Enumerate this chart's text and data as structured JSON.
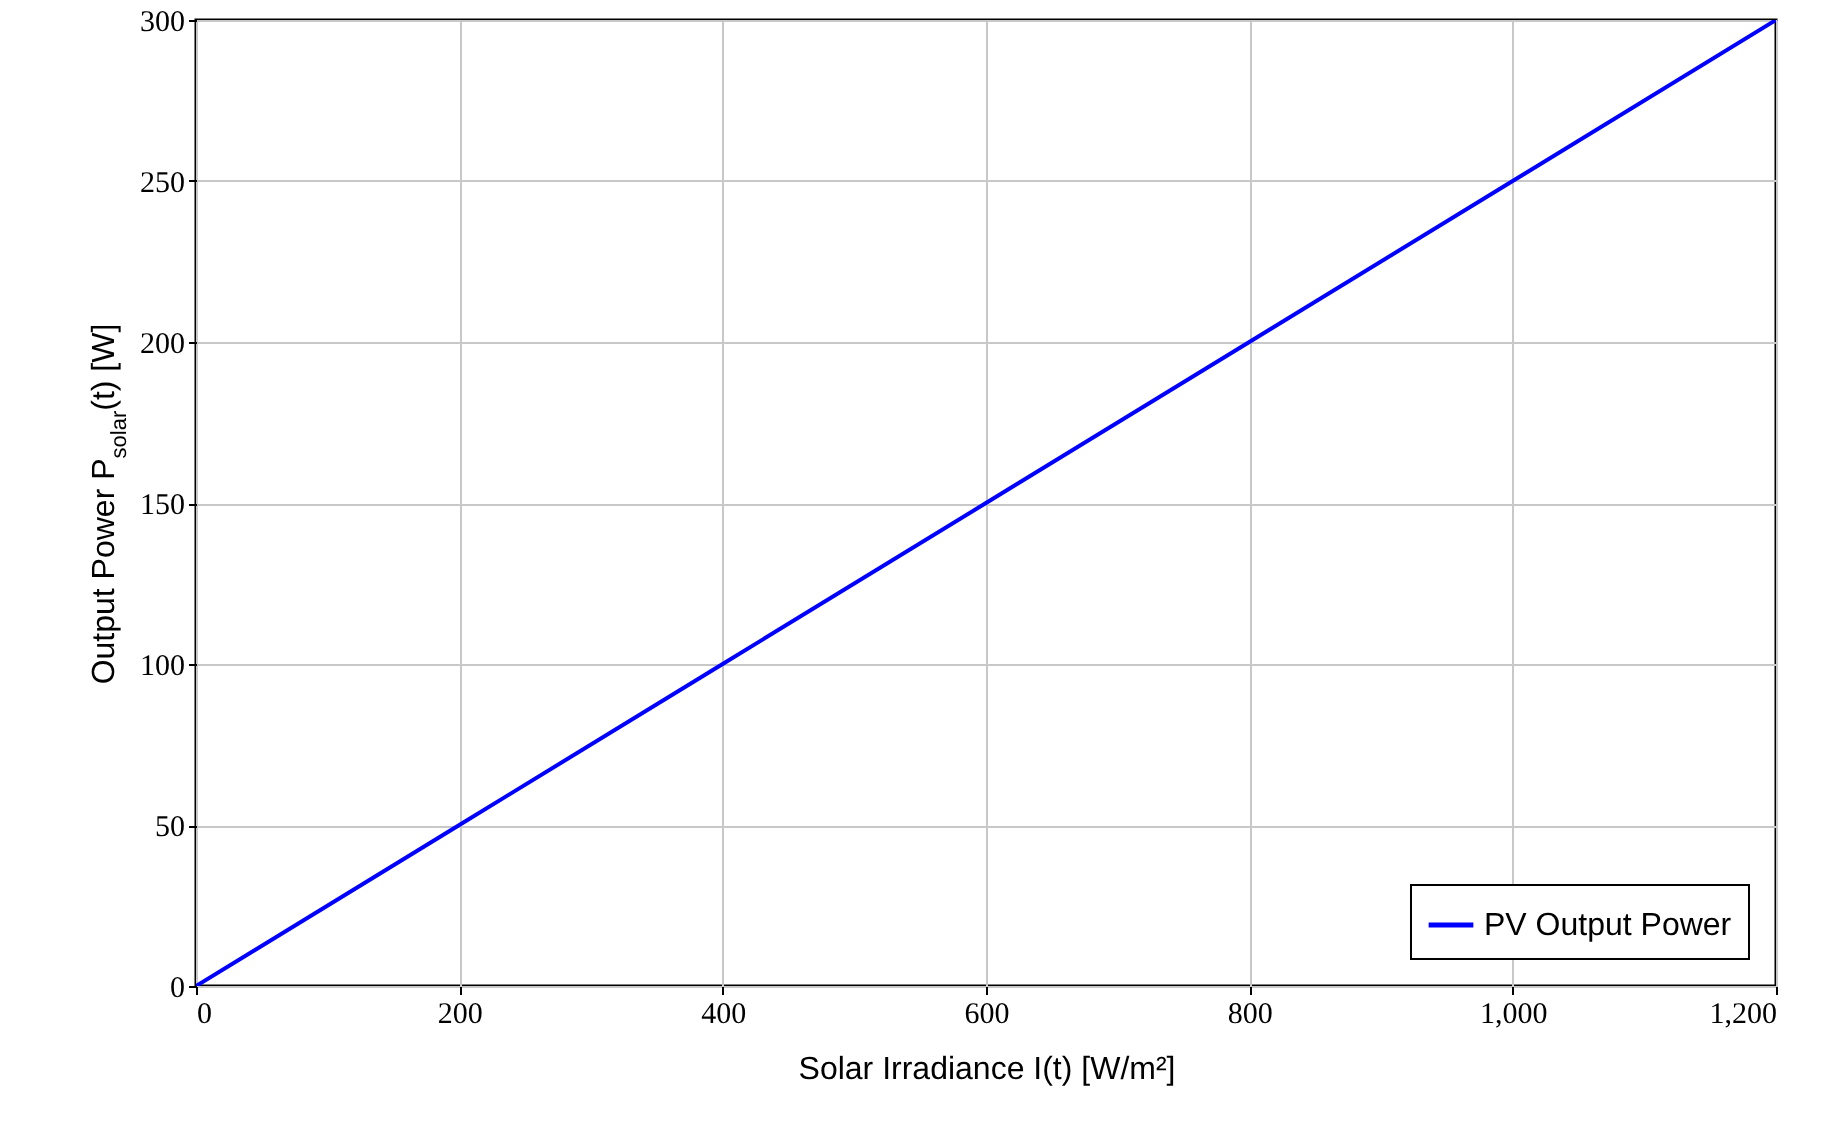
{
  "chart_data": {
    "type": "line",
    "xlabel": "Solar Irradiance I(t) [W/m²]",
    "ylabel": "Output Power P$_{solar}$(t) [W]",
    "x": [
      0,
      200,
      400,
      600,
      800,
      1000,
      1200
    ],
    "series": [
      {
        "name": "PV Output Power",
        "color": "#0000ff",
        "values": [
          0,
          50,
          100,
          150,
          200,
          250,
          300
        ]
      }
    ],
    "xlim": [
      0,
      1200
    ],
    "ylim": [
      0,
      300
    ],
    "xticks": [
      0,
      200,
      400,
      600,
      800,
      {
        "value": 1000,
        "label": "1,000"
      },
      {
        "value": 1200,
        "label": "1,200"
      }
    ],
    "yticks": [
      0,
      50,
      100,
      150,
      200,
      250,
      300
    ],
    "grid": true,
    "legend": "bottom right"
  }
}
